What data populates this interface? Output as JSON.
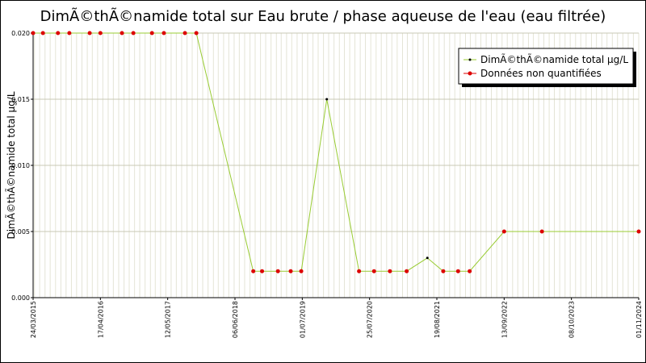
{
  "chart_data": {
    "type": "line",
    "title": "DimÃ©thÃ©namide total sur Eau brute / phase aqueuse de l'eau (eau filtrée)",
    "xlabel": "",
    "ylabel": "DimÃ©thÃ©namide total µg/L",
    "ylim": [
      0,
      0.02
    ],
    "yticks": [
      "0.000",
      "0.005",
      "0.010",
      "0.015",
      "0.020"
    ],
    "xlim": [
      "2015-03-24",
      "2024-11-01"
    ],
    "xticks": [
      "24/03/2015",
      "17/04/2016",
      "12/05/2017",
      "06/06/2018",
      "01/07/2019",
      "25/07/2020",
      "19/08/2021",
      "13/09/2022",
      "08/10/2023",
      "01/11/2024"
    ],
    "grid": true,
    "legend_position": "top-right",
    "colors": {
      "line": "#99cc33",
      "quantified": "#000000",
      "non_quantified": "#dd0000",
      "grid_major": "#c8c8b4",
      "grid_minor": "#e4e4d6"
    },
    "series": [
      {
        "name": "DimÃ©thÃ©namide total µg/L",
        "points": [
          {
            "x": "2015-03-24",
            "y": 0.02,
            "quantified": false
          },
          {
            "x": "2015-05-20",
            "y": 0.02,
            "quantified": false
          },
          {
            "x": "2015-08-15",
            "y": 0.02,
            "quantified": false
          },
          {
            "x": "2015-10-20",
            "y": 0.02,
            "quantified": false
          },
          {
            "x": "2016-02-15",
            "y": 0.02,
            "quantified": false
          },
          {
            "x": "2016-04-17",
            "y": 0.02,
            "quantified": false
          },
          {
            "x": "2016-08-20",
            "y": 0.02,
            "quantified": false
          },
          {
            "x": "2016-10-25",
            "y": 0.02,
            "quantified": false
          },
          {
            "x": "2017-02-10",
            "y": 0.02,
            "quantified": false
          },
          {
            "x": "2017-04-20",
            "y": 0.02,
            "quantified": false
          },
          {
            "x": "2017-08-20",
            "y": 0.02,
            "quantified": false
          },
          {
            "x": "2017-10-25",
            "y": 0.02,
            "quantified": false
          },
          {
            "x": "2018-09-20",
            "y": 0.002,
            "quantified": false
          },
          {
            "x": "2018-11-10",
            "y": 0.002,
            "quantified": false
          },
          {
            "x": "2019-02-10",
            "y": 0.002,
            "quantified": false
          },
          {
            "x": "2019-04-25",
            "y": 0.002,
            "quantified": false
          },
          {
            "x": "2019-06-25",
            "y": 0.002,
            "quantified": false
          },
          {
            "x": "2019-11-20",
            "y": 0.015,
            "quantified": true
          },
          {
            "x": "2020-05-25",
            "y": 0.002,
            "quantified": false
          },
          {
            "x": "2020-08-20",
            "y": 0.002,
            "quantified": false
          },
          {
            "x": "2020-11-20",
            "y": 0.002,
            "quantified": false
          },
          {
            "x": "2021-02-25",
            "y": 0.002,
            "quantified": false
          },
          {
            "x": "2021-06-25",
            "y": 0.003,
            "quantified": true
          },
          {
            "x": "2021-09-25",
            "y": 0.002,
            "quantified": false
          },
          {
            "x": "2021-12-20",
            "y": 0.002,
            "quantified": false
          },
          {
            "x": "2022-02-25",
            "y": 0.002,
            "quantified": false
          },
          {
            "x": "2022-09-13",
            "y": 0.005,
            "quantified": false
          },
          {
            "x": "2023-04-20",
            "y": 0.005,
            "quantified": false
          },
          {
            "x": "2024-11-01",
            "y": 0.005,
            "quantified": false
          }
        ]
      }
    ],
    "legend": [
      {
        "label": "DimÃ©thÃ©namide total µg/L",
        "marker": "quantified"
      },
      {
        "label": "Données non quantifiées",
        "marker": "non_quantified"
      }
    ]
  }
}
